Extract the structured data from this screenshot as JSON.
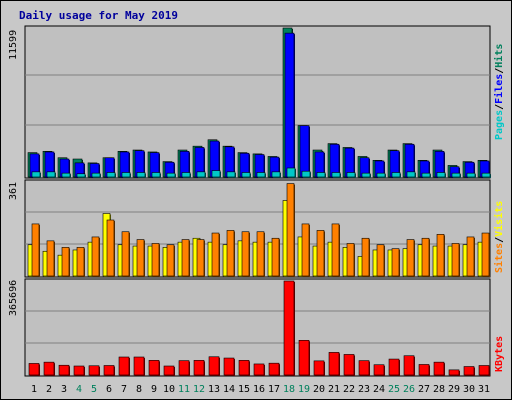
{
  "chart_data": {
    "type": "bar",
    "title": "Daily usage for May 2019",
    "x": [
      "1",
      "2",
      "3",
      "4",
      "5",
      "6",
      "7",
      "8",
      "9",
      "10",
      "11",
      "12",
      "13",
      "14",
      "15",
      "16",
      "17",
      "18",
      "19",
      "20",
      "21",
      "22",
      "23",
      "24",
      "25",
      "26",
      "27",
      "28",
      "29",
      "30",
      "31"
    ],
    "weekend_days": [
      "4",
      "5",
      "11",
      "12",
      "18",
      "19",
      "25",
      "26"
    ],
    "panels": [
      {
        "name": "hits_files_pages",
        "ymax_label": "11599",
        "ylim": [
          0,
          11599
        ],
        "legend": [
          "Pages",
          "/",
          "Files",
          "/",
          "Hits"
        ],
        "legend_colors": [
          "#00c8c8",
          "#000000",
          "#0000ff",
          "#000000",
          "#00805c"
        ],
        "series": [
          {
            "name": "Hits",
            "color": "#00805c",
            "values": [
              1900,
              2000,
              1500,
              1400,
              1100,
              1500,
              2000,
              2100,
              1950,
              1200,
              2100,
              2400,
              2900,
              2400,
              1900,
              1800,
              1600,
              11599,
              4000,
              2100,
              2600,
              2300,
              1600,
              1300,
              2100,
              2600,
              1300,
              2100,
              900,
              1200,
              1300
            ]
          },
          {
            "name": "Files",
            "color": "#0000ff",
            "values": [
              1800,
              1950,
              1400,
              1100,
              1050,
              1500,
              1950,
              2050,
              1900,
              1150,
              2000,
              2300,
              2800,
              2350,
              1850,
              1750,
              1550,
              11200,
              4000,
              1950,
              2550,
              2250,
              1500,
              1250,
              2050,
              2550,
              1250,
              2000,
              800,
              1150,
              1250
            ]
          },
          {
            "name": "Pages",
            "color": "#00c8c8",
            "values": [
              400,
              400,
              300,
              250,
              300,
              350,
              350,
              350,
              350,
              300,
              350,
              400,
              500,
              400,
              350,
              350,
              400,
              700,
              450,
              350,
              350,
              350,
              300,
              300,
              350,
              400,
              300,
              350,
              300,
              300,
              300
            ]
          }
        ]
      },
      {
        "name": "sites_visits",
        "ymax_label": "361",
        "ylim": [
          0,
          361
        ],
        "legend": [
          "Sites",
          "/",
          "Visits"
        ],
        "legend_colors": [
          "#ff8000",
          "#000000",
          "#ffff00"
        ],
        "series": [
          {
            "name": "Visits",
            "color": "#ffff00",
            "values": [
              120,
              95,
              80,
              100,
              130,
              240,
              120,
              115,
              115,
              110,
              130,
              145,
              130,
              120,
              135,
              130,
              130,
              290,
              150,
              115,
              130,
              110,
              75,
              100,
              100,
              105,
              120,
              115,
              115,
              120,
              130
            ]
          },
          {
            "name": "Sites",
            "color": "#ff8000",
            "values": [
              200,
              135,
              110,
              110,
              150,
              215,
              170,
              140,
              125,
              120,
              140,
              140,
              165,
              175,
              170,
              170,
              145,
              355,
              200,
              175,
              200,
              125,
              145,
              120,
              105,
              140,
              145,
              160,
              125,
              150,
              165
            ]
          }
        ]
      },
      {
        "name": "kbytes",
        "ymax_label": "365696",
        "ylim": [
          0,
          365696
        ],
        "legend": [
          "KBytes"
        ],
        "legend_colors": [
          "#ff0000"
        ],
        "series": [
          {
            "name": "KBytes",
            "color": "#ff0000",
            "values": [
              45000,
              50000,
              38000,
              35000,
              36000,
              37000,
              70000,
              70000,
              57000,
              35000,
              56000,
              57000,
              71000,
              66000,
              57000,
              43000,
              46000,
              365696,
              135000,
              55000,
              88000,
              80000,
              56000,
              40000,
              62000,
              75000,
              41000,
              50000,
              20000,
              33000,
              37000
            ]
          }
        ]
      }
    ],
    "grid": true
  }
}
